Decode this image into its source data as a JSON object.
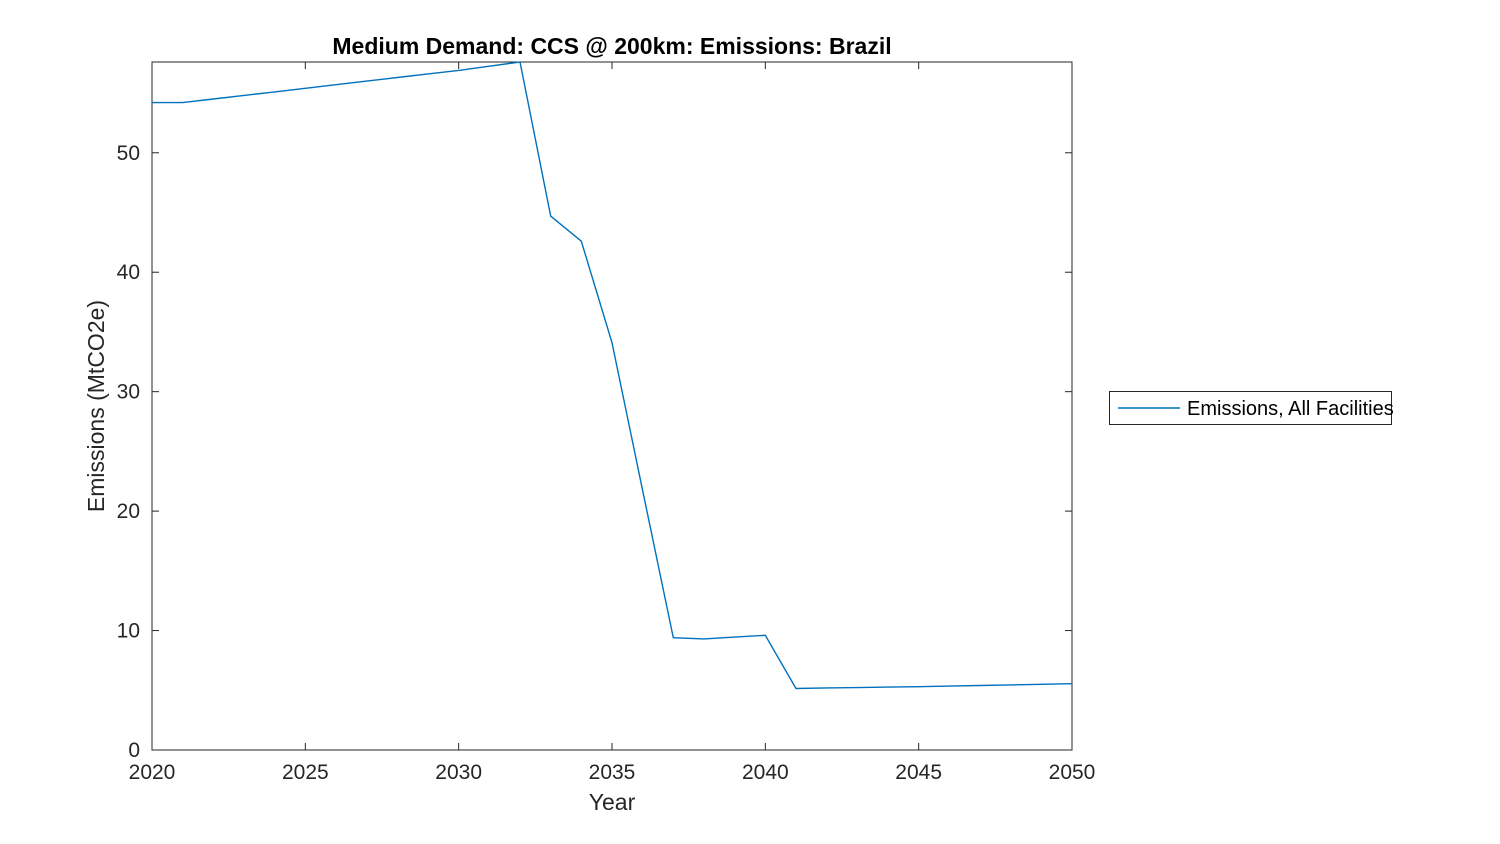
{
  "figure": {
    "title": "Medium Demand: CCS @ 200km: Emissions: Brazil",
    "xlabel": "Year",
    "ylabel": "Emissions (MtCO2e)",
    "legend": {
      "entries": [
        "Emissions, All Facilities"
      ],
      "position": "right-outside"
    },
    "colors": {
      "line": "#0072BD",
      "axis": "#262626",
      "title": "#000000",
      "background": "#ffffff"
    }
  },
  "chart_data": {
    "type": "line",
    "title": "Medium Demand: CCS @ 200km: Emissions: Brazil",
    "xlabel": "Year",
    "ylabel": "Emissions (MtCO2e)",
    "x": [
      2020,
      2021,
      2022,
      2023,
      2024,
      2025,
      2026,
      2027,
      2028,
      2029,
      2030,
      2031,
      2032,
      2033,
      2034,
      2035,
      2036,
      2037,
      2038,
      2039,
      2040,
      2041,
      2042,
      2043,
      2044,
      2045,
      2046,
      2047,
      2048,
      2049,
      2050
    ],
    "series": [
      {
        "name": "Emissions, All Facilities",
        "color": "#0072BD",
        "values": [
          54.2,
          54.2,
          54.5,
          54.8,
          55.1,
          55.4,
          55.7,
          56.0,
          56.3,
          56.6,
          56.9,
          57.25,
          57.6,
          44.7,
          42.6,
          34.1,
          21.7,
          9.4,
          9.3,
          9.45,
          9.6,
          5.15,
          5.2,
          5.22,
          5.27,
          5.3,
          5.35,
          5.4,
          5.45,
          5.5,
          5.55
        ]
      }
    ],
    "xlim": [
      2020,
      2050
    ],
    "ylim": [
      0,
      57.6
    ],
    "xticks": [
      2020,
      2025,
      2030,
      2035,
      2040,
      2045,
      2050
    ],
    "yticks": [
      0,
      10,
      20,
      30,
      40,
      50
    ],
    "grid": false,
    "legend_position": "right-outside"
  }
}
